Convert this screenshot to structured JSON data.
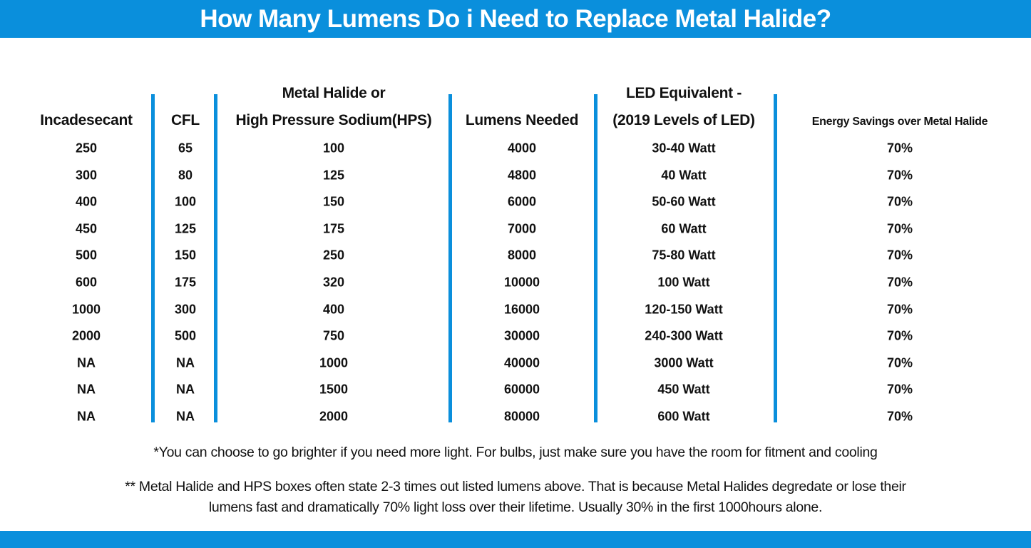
{
  "title": "How Many Lumens Do i Need to Replace Metal Halide?",
  "colors": {
    "accent": "#0a8fdc",
    "text": "#111111",
    "background": "#ffffff"
  },
  "table": {
    "headers": [
      {
        "line1": "",
        "line2": "Incadesecant"
      },
      {
        "line1": "",
        "line2": "CFL"
      },
      {
        "line1": "Metal Halide or",
        "line2": "High Pressure Sodium(HPS)"
      },
      {
        "line1": "",
        "line2": "Lumens Needed"
      },
      {
        "line1": "LED Equivalent -",
        "line2": "(2019 Levels of LED)"
      },
      {
        "line1": "",
        "line2": "Energy Savings over Metal Halide"
      }
    ],
    "rows": [
      [
        "250",
        "65",
        "100",
        "4000",
        "30-40 Watt",
        "70%"
      ],
      [
        "300",
        "80",
        "125",
        "4800",
        "40 Watt",
        "70%"
      ],
      [
        "400",
        "100",
        "150",
        "6000",
        "50-60 Watt",
        "70%"
      ],
      [
        "450",
        "125",
        "175",
        "7000",
        "60 Watt",
        "70%"
      ],
      [
        "500",
        "150",
        "250",
        "8000",
        "75-80 Watt",
        "70%"
      ],
      [
        "600",
        "175",
        "320",
        "10000",
        "100 Watt",
        "70%"
      ],
      [
        "1000",
        "300",
        "400",
        "16000",
        "120-150 Watt",
        "70%"
      ],
      [
        "2000",
        "500",
        "750",
        "30000",
        "240-300 Watt",
        "70%"
      ],
      [
        "NA",
        "NA",
        "1000",
        "40000",
        "3000 Watt",
        "70%"
      ],
      [
        "NA",
        "NA",
        "1500",
        "60000",
        "450 Watt",
        "70%"
      ],
      [
        "NA",
        "NA",
        "2000",
        "80000",
        "600 Watt",
        "70%"
      ]
    ]
  },
  "notes": {
    "note1": "*You can choose to go brighter if you need more light. For bulbs, just make sure you have the room for fitment and cooling",
    "note2_line1": "** Metal Halide and HPS boxes often state 2-3 times out listed lumens above. That is because Metal Halides degredate or lose their",
    "note2_line2": "lumens fast and dramatically 70% light loss over their lifetime. Usually 30% in the first 1000hours alone."
  }
}
